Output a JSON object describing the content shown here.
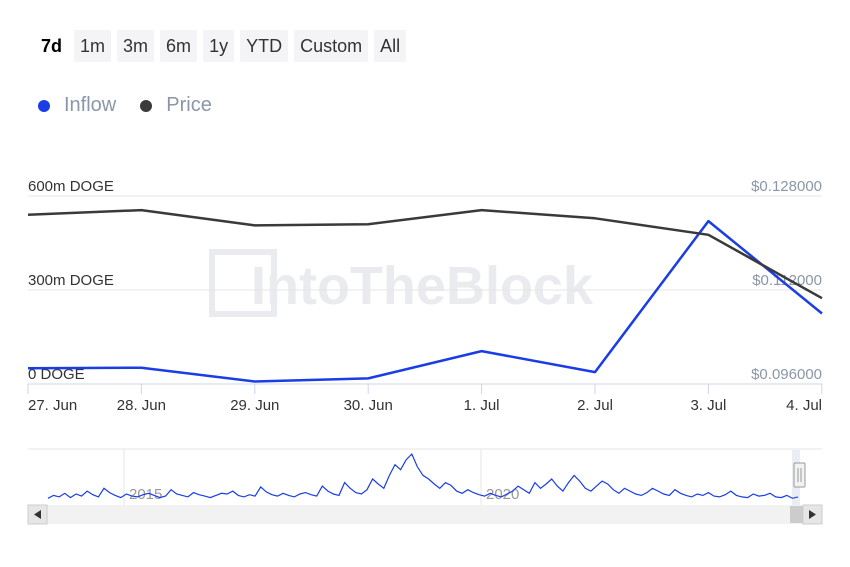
{
  "range_selector": {
    "buttons": [
      "7d",
      "1m",
      "3m",
      "6m",
      "1y",
      "YTD",
      "Custom",
      "All"
    ],
    "active": "7d"
  },
  "legend": [
    {
      "label": "Inflow",
      "color": "#1a3de6"
    },
    {
      "label": "Price",
      "color": "#3a3a3a"
    }
  ],
  "watermark": "IntoTheBlock",
  "chart_data": {
    "type": "line",
    "categories": [
      "27. Jun",
      "28. Jun",
      "29. Jun",
      "30. Jun",
      "1. Jul",
      "2. Jul",
      "3. Jul",
      "4. Jul"
    ],
    "y_left": {
      "ticks": [
        "600m DOGE",
        "300m DOGE",
        "0 DOGE"
      ],
      "range": [
        0,
        600
      ]
    },
    "y_right": {
      "ticks": [
        "$0.128000",
        "$0.112000",
        "$0.096000"
      ],
      "range": [
        0.096,
        0.128
      ]
    },
    "series": [
      {
        "name": "Inflow",
        "color": "#1a3de6",
        "axis": "left",
        "unit": "m DOGE",
        "x": [
          -0.05,
          1,
          2,
          3,
          4,
          5,
          6,
          7.05
        ],
        "values": [
          50,
          52,
          8,
          18,
          105,
          38,
          520,
          225
        ]
      },
      {
        "name": "Price",
        "color": "#3a3a3a",
        "axis": "right",
        "unit": "USD",
        "x": [
          -0.05,
          1,
          2,
          3,
          4,
          5,
          6,
          7.05
        ],
        "values": [
          0.1248,
          0.1256,
          0.123,
          0.1232,
          0.1256,
          0.1242,
          0.1214,
          0.1106
        ]
      }
    ],
    "navigator": {
      "year_labels": [
        "2015",
        "2020"
      ],
      "series_values": [
        8,
        12,
        10,
        15,
        9,
        14,
        11,
        18,
        13,
        10,
        22,
        16,
        12,
        9,
        14,
        11,
        10,
        13,
        15,
        12,
        9,
        11,
        20,
        14,
        12,
        10,
        16,
        13,
        11,
        9,
        12,
        15,
        14,
        18,
        12,
        10,
        13,
        11,
        24,
        17,
        13,
        11,
        15,
        12,
        10,
        14,
        16,
        13,
        11,
        25,
        18,
        14,
        12,
        30,
        22,
        16,
        14,
        20,
        35,
        28,
        22,
        40,
        55,
        48,
        62,
        70,
        52,
        40,
        35,
        28,
        22,
        30,
        26,
        18,
        15,
        20,
        16,
        13,
        11,
        15,
        12,
        10,
        14,
        18,
        25,
        20,
        15,
        30,
        22,
        28,
        35,
        25,
        18,
        30,
        40,
        32,
        22,
        18,
        25,
        32,
        28,
        20,
        15,
        22,
        18,
        14,
        12,
        16,
        22,
        18,
        14,
        12,
        20,
        15,
        12,
        10,
        14,
        12,
        16,
        11,
        10,
        13,
        18,
        12,
        10,
        9,
        14,
        11,
        12,
        15,
        10,
        9,
        12,
        8,
        10
      ]
    }
  }
}
